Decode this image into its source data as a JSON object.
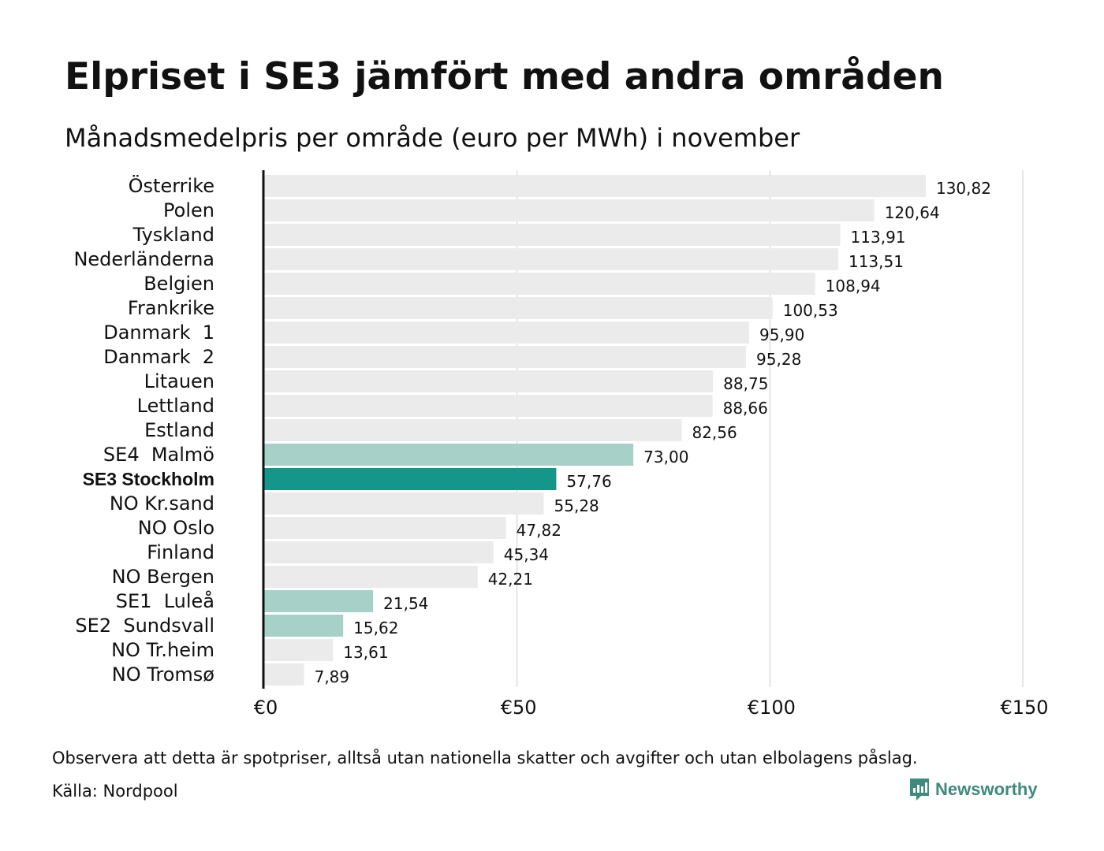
{
  "header": {
    "title": "Elpriset i SE3 jämfört med andra områden",
    "subtitle": "Månadsmedelpris per område (euro per MWh) i november"
  },
  "footer": {
    "note": "Observera att detta är spotpriser, alltså utan nationella skatter och avgifter och utan elbolagens påslag.",
    "source": "Källa: Nordpool",
    "brand": "Newsworthy",
    "brand_icon": "newsworthy-logo-icon"
  },
  "colors": {
    "bar_default": "#ebebeb",
    "bar_swedish": "#a7d0c9",
    "bar_highlight": "#14978a",
    "axis": "#111111",
    "grid": "#cccccc",
    "brand": "#3e8a7c"
  },
  "chart_data": {
    "type": "bar",
    "orientation": "horizontal",
    "categories": [
      "Österrike",
      "Polen",
      "Tyskland",
      "Nederländerna",
      "Belgien",
      "Frankrike",
      "Danmark  1",
      "Danmark  2",
      "Litauen",
      "Lettland",
      "Estland",
      "SE4  Malmö",
      "SE3 Stockholm",
      "NO Kr.sand",
      "NO Oslo",
      "Finland",
      "NO Bergen",
      "SE1  Luleå",
      "SE2  Sundsvall",
      "NO Tr.heim",
      "NO Tromsø"
    ],
    "values": [
      130.82,
      120.64,
      113.91,
      113.51,
      108.94,
      100.53,
      95.9,
      95.28,
      88.75,
      88.66,
      82.56,
      73.0,
      57.76,
      55.28,
      47.82,
      45.34,
      42.21,
      21.54,
      15.62,
      13.61,
      7.89
    ],
    "value_labels": [
      "130,82",
      "120,64",
      "113,91",
      "113,51",
      "108,94",
      "100,53",
      "95,90",
      "95,28",
      "88,75",
      "88,66",
      "82,56",
      "73,00",
      "57,76",
      "55,28",
      "47,82",
      "45,34",
      "42,21",
      "21,54",
      "15,62",
      "13,61",
      "7,89"
    ],
    "bar_styles": [
      "default",
      "default",
      "default",
      "default",
      "default",
      "default",
      "default",
      "default",
      "default",
      "default",
      "default",
      "swedish",
      "highlight",
      "default",
      "default",
      "default",
      "default",
      "swedish",
      "swedish",
      "default",
      "default"
    ],
    "highlight_category": "SE3 Stockholm",
    "xlim": [
      0,
      150
    ],
    "x_ticks": [
      0,
      50,
      100,
      150
    ],
    "x_tick_labels": [
      "€0",
      "€50",
      "€100",
      "€150"
    ],
    "grid": true,
    "xlabel": "",
    "ylabel": ""
  }
}
